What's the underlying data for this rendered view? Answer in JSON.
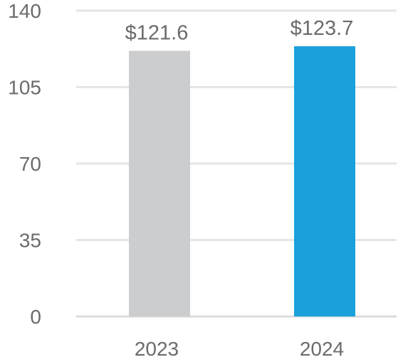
{
  "chart_data": {
    "type": "bar",
    "categories": [
      "2023",
      "2024"
    ],
    "values": [
      121.6,
      123.7
    ],
    "data_labels": [
      "$121.6",
      "$123.7"
    ],
    "bar_colors": [
      "#cccdcf",
      "#1aa0da"
    ],
    "y_ticks": [
      "0",
      "35",
      "70",
      "105",
      "140"
    ],
    "ylim": [
      0,
      140
    ],
    "grid": true,
    "legend": "none",
    "title": "",
    "xlabel": "",
    "ylabel": ""
  }
}
